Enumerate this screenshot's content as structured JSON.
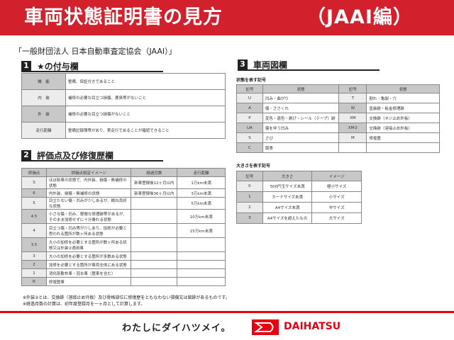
{
  "header": {
    "title": "車両状態証明書の見方",
    "subtitle": "（JAAI編）"
  },
  "organization": "「一般財団法人 日本自動車査定協会（JAAI）」",
  "section1": {
    "num": "1",
    "title": "★の付与欄",
    "rows": [
      {
        "label": "機　能",
        "text": "整備、保証付きであること"
      },
      {
        "label": "内　装",
        "text": "補修の必要な目立つ損傷、悪臭等がないこと"
      },
      {
        "label": "外　装",
        "text": "補修の必要な目立つ損傷がないこと"
      },
      {
        "label": "走行距離",
        "text": "整備記録簿等があり、実走行であることが確認できること"
      }
    ]
  },
  "section2": {
    "num": "2",
    "title": "評価点及び修復歴欄",
    "headers": [
      "評価点",
      "評価点設定イメージ",
      "経過月数",
      "走行距離"
    ],
    "rows": [
      [
        "S",
        "ほぼ新車の状態で、内外装、損傷・無補修の状態",
        "新車登録後12ヶ月以内",
        "1万km未満"
      ],
      [
        "6",
        "内外装、損傷・無補修の状態",
        "新車登録後36ヶ月以内",
        "3万km未満"
      ],
      [
        "5",
        "目立たない傷・凹みが少しあるが、概ね良好な状態",
        "",
        "5万km未満"
      ],
      [
        "4.5",
        "小さな傷・凹み、軽微な修理跡等があるが、そのまま加修せずに十分乗れる状態",
        "",
        "10万km未満"
      ],
      [
        "4",
        "目立つ傷・凹み等が少しあり、加修が必要と思われる箇所が数ヶ所ある状態",
        "",
        "15万km未満"
      ],
      [
        "3.5",
        "大小の加修を必要とする箇所が数ヶ所ある状態又は外装②適用車",
        "",
        ""
      ],
      [
        "3",
        "大小の加修を必要とする箇所が多数ある状態",
        "",
        ""
      ],
      [
        "2",
        "加修を必要とする箇所が車両全体にある状態",
        "",
        ""
      ],
      [
        "1",
        "消化剤散布車・冠水車（歴車を含む）",
        "",
        ""
      ],
      [
        "R",
        "修復歴車",
        "",
        ""
      ]
    ]
  },
  "section3": {
    "num": "3",
    "title": "車両図欄",
    "state_label": "状態を表す記号",
    "state_headers": [
      "記号",
      "状態",
      "記号",
      "状態"
    ],
    "state_rows": [
      [
        "U",
        "凹み・曲がり",
        "T",
        "割れ・亀裂・穴"
      ],
      [
        "A",
        "傷・ささくれ",
        "W",
        "塗装跡・板金修理跡"
      ],
      [
        "P",
        "変色・退色・剥げ・シール（テープ）跡",
        "XM",
        "交換跡（ネジ止め外板）"
      ],
      [
        "UA",
        "傷を伴う凹み",
        "XM②",
        "交換跡（溶接止め外板）"
      ],
      [
        "S",
        "さび",
        "M",
        "修復歴"
      ],
      [
        "C",
        "腐食",
        "",
        ""
      ]
    ],
    "size_label": "大きさを表す記号",
    "size_headers": [
      "記号",
      "大きさ",
      "イメージ"
    ],
    "size_rows": [
      [
        "0",
        "500円玉サイズ未満",
        "極小サイズ"
      ],
      [
        "1",
        "カードサイズ未満",
        "小サイズ"
      ],
      [
        "2",
        "A4サイズ未満",
        "中サイズ"
      ],
      [
        "3",
        "A4サイズを超えたもの",
        "大サイズ"
      ]
    ]
  },
  "notes": [
    "※外装②とは、交換跡（溶接止め外板）及び骨格部位に修復歴をともなわない損傷又は腐跡があるものです。",
    "※経過月数の計算は、初年度登録月を一ヶ月として計算します。"
  ],
  "footer": {
    "slogan": "わたしにダイハツメイ。",
    "brand": "DAIHATSU",
    "brand_color": "#e60012"
  },
  "colors": {
    "header": "#d2202c"
  }
}
